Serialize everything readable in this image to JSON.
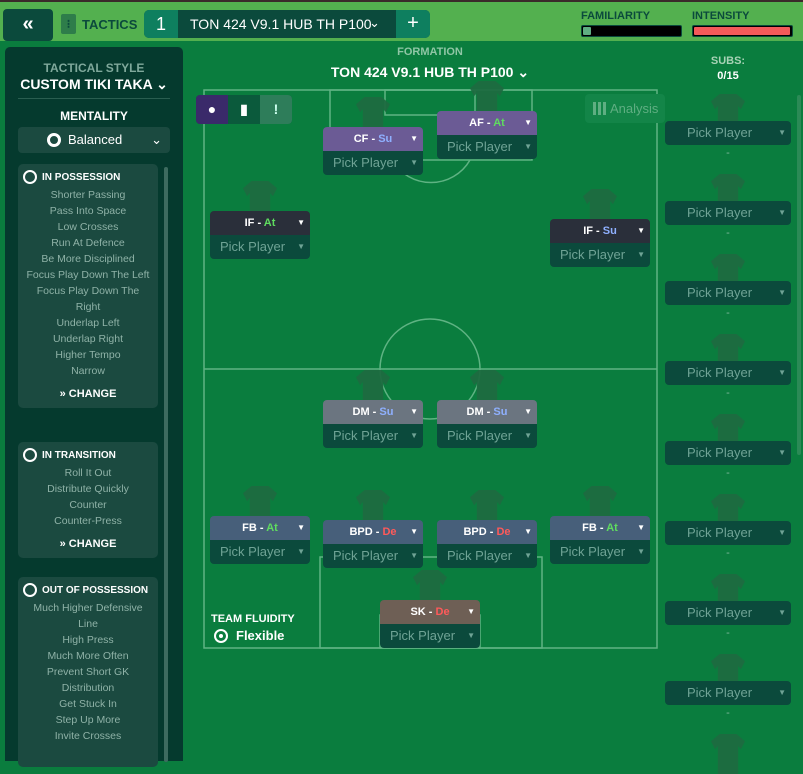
{
  "topbar": {
    "back_icon": "double-chevron-left",
    "tactics_label": "TACTICS",
    "tactic_number": "1",
    "tactic_name": "TON 424  V9.1  HUB TH P100",
    "add_label": "+",
    "familiarity_label": "FAMILIARITY",
    "familiarity_level": 0.08,
    "intensity_label": "INTENSITY",
    "intensity_level": 0.97,
    "intensity_color": "#f25a5a"
  },
  "sidebar": {
    "tactical_style_label": "TACTICAL STYLE",
    "tactical_style": "CUSTOM TIKI TAKA",
    "mentality_label": "MENTALITY",
    "mentality": "Balanced",
    "in_possession": {
      "title": "IN POSSESSION",
      "items": [
        "Shorter Passing",
        "Pass Into Space",
        "Low Crosses",
        "Run At Defence",
        "Be More Disciplined",
        "Focus Play Down The Left",
        "Focus Play Down The Right",
        "Underlap Left",
        "Underlap Right",
        "Higher Tempo",
        "Narrow"
      ],
      "change": "CHANGE"
    },
    "in_transition": {
      "title": "IN TRANSITION",
      "items": [
        "Roll It Out",
        "Distribute Quickly",
        "Counter",
        "Counter-Press"
      ],
      "change": "CHANGE"
    },
    "out_of_possession": {
      "title": "OUT OF POSSESSION",
      "items": [
        "Much Higher Defensive Line",
        "High Press",
        "Much More Often",
        "Prevent Short GK Distribution",
        "Get Stuck In",
        "Step Up More",
        "Invite Crosses"
      ]
    }
  },
  "formation": {
    "label": "FORMATION",
    "name": "TON 424  V9.1  HUB TH P100",
    "analysis": "Analysis"
  },
  "subs": {
    "label": "SUBS:",
    "count": "0/15",
    "pick": "Pick Player",
    "dash": "-"
  },
  "positions": [
    {
      "role": "CF",
      "duty": "Su",
      "pick": "Pick Player",
      "color": "#6b5b95"
    },
    {
      "role": "AF",
      "duty": "At",
      "pick": "Pick Player",
      "color": "#6b5b95"
    },
    {
      "role": "IF",
      "duty": "At",
      "pick": "Pick Player",
      "color": "#2a2f3a"
    },
    {
      "role": "IF",
      "duty": "Su",
      "pick": "Pick Player",
      "color": "#2a2f3a"
    },
    {
      "role": "DM",
      "duty": "Su",
      "pick": "Pick Player",
      "color": "#6b7580"
    },
    {
      "role": "DM",
      "duty": "Su",
      "pick": "Pick Player",
      "color": "#6b7580"
    },
    {
      "role": "FB",
      "duty": "At",
      "pick": "Pick Player",
      "color": "#475f7a"
    },
    {
      "role": "BPD",
      "duty": "De",
      "pick": "Pick Player",
      "color": "#475f7a"
    },
    {
      "role": "BPD",
      "duty": "De",
      "pick": "Pick Player",
      "color": "#475f7a"
    },
    {
      "role": "FB",
      "duty": "At",
      "pick": "Pick Player",
      "color": "#475f7a"
    },
    {
      "role": "SK",
      "duty": "De",
      "pick": "Pick Player",
      "color": "#6e5f55"
    }
  ],
  "team_fluidity": {
    "label": "TEAM FLUIDITY",
    "value": "Flexible"
  }
}
